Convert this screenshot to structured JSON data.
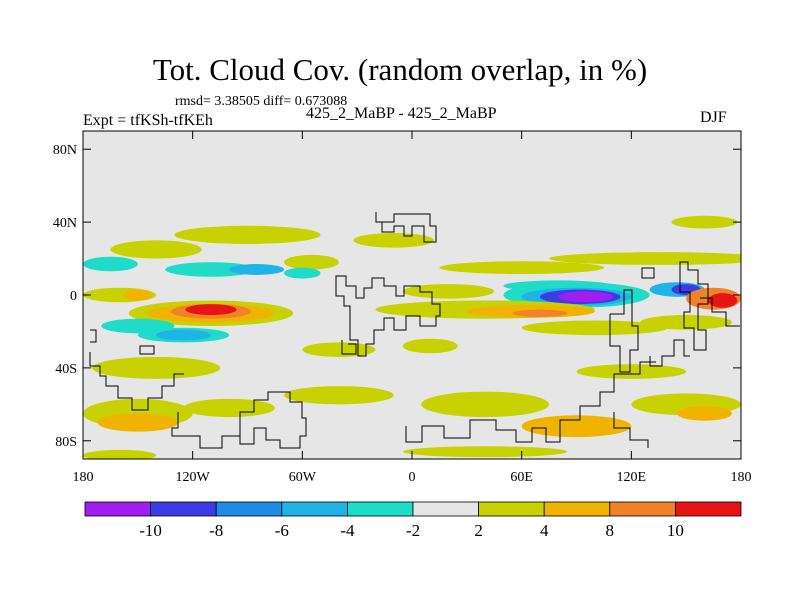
{
  "header": {
    "title": "Tot. Cloud Cov. (random overlap, in %)",
    "stats": "rmsd= 3.38505 diff= 0.673088",
    "experiment": "Expt = tfKSh-tfKEh",
    "comparison": "425_2_MaBP - 425_2_MaBP",
    "season": "DJF"
  },
  "chart_data": {
    "type": "heatmap",
    "title": "Tot. Cloud Cov. (random overlap, in %)",
    "xlabel": "",
    "ylabel": "",
    "xlim": [
      -180,
      180
    ],
    "ylim": [
      -90,
      90
    ],
    "x_ticks": [
      {
        "value": -180,
        "label": "180"
      },
      {
        "value": -120,
        "label": "120W"
      },
      {
        "value": -60,
        "label": "60W"
      },
      {
        "value": 0,
        "label": "0"
      },
      {
        "value": 60,
        "label": "60E"
      },
      {
        "value": 120,
        "label": "120E"
      },
      {
        "value": 180,
        "label": "180"
      }
    ],
    "y_ticks": [
      {
        "value": 80,
        "label": "80N"
      },
      {
        "value": 40,
        "label": "40N"
      },
      {
        "value": 0,
        "label": "0"
      },
      {
        "value": -40,
        "label": "40S"
      },
      {
        "value": -80,
        "label": "80S"
      }
    ],
    "background_color": "#e6e6e6",
    "colorbar": {
      "boundaries": [
        -10,
        -8,
        -6,
        -4,
        -2,
        2,
        4,
        8,
        10
      ],
      "labels": [
        "-10",
        "-8",
        "-6",
        "-4",
        "-2",
        "2",
        "4",
        "8",
        "10"
      ],
      "colors": [
        "#a01ef0",
        "#3c3ce6",
        "#1e8ce6",
        "#1eb4e6",
        "#1edcc8",
        "#e6e6e6",
        "#c8d200",
        "#f0b400",
        "#f08228",
        "#e61414"
      ]
    },
    "anomaly_regions": [
      {
        "lon": 135,
        "lat": 20,
        "rx": 60,
        "ry": 3.5,
        "color": "#c8d200"
      },
      {
        "lon": -140,
        "lat": 25,
        "rx": 25,
        "ry": 5,
        "color": "#c8d200"
      },
      {
        "lon": -90,
        "lat": 33,
        "rx": 40,
        "ry": 5,
        "color": "#c8d200"
      },
      {
        "lon": -55,
        "lat": 18,
        "rx": 15,
        "ry": 4,
        "color": "#c8d200"
      },
      {
        "lon": -10,
        "lat": 30,
        "rx": 22,
        "ry": 4,
        "color": "#c8d200"
      },
      {
        "lon": 60,
        "lat": 15,
        "rx": 45,
        "ry": 3.5,
        "color": "#c8d200"
      },
      {
        "lon": 160,
        "lat": 40,
        "rx": 18,
        "ry": 3.5,
        "color": "#c8d200"
      },
      {
        "lon": -165,
        "lat": 17,
        "rx": 15,
        "ry": 4,
        "color": "#1edcc8"
      },
      {
        "lon": -110,
        "lat": 14,
        "rx": 25,
        "ry": 4,
        "color": "#1edcc8"
      },
      {
        "lon": -85,
        "lat": 14,
        "rx": 15,
        "ry": 3,
        "color": "#1eb4e6"
      },
      {
        "lon": -60,
        "lat": 12,
        "rx": 10,
        "ry": 3,
        "color": "#1edcc8"
      },
      {
        "lon": 80,
        "lat": 5,
        "rx": 30,
        "ry": 3,
        "color": "#1edcc8"
      },
      {
        "lon": -160,
        "lat": 0,
        "rx": 20,
        "ry": 4,
        "color": "#c8d200"
      },
      {
        "lon": -150,
        "lat": 0,
        "rx": 8,
        "ry": 3,
        "color": "#f0b400"
      },
      {
        "lon": 20,
        "lat": 2,
        "rx": 25,
        "ry": 4,
        "color": "#c8d200"
      },
      {
        "lon": 90,
        "lat": 0,
        "rx": 40,
        "ry": 7,
        "color": "#1edcc8"
      },
      {
        "lon": 90,
        "lat": -1,
        "rx": 30,
        "ry": 5,
        "color": "#1eb4e6"
      },
      {
        "lon": 92,
        "lat": -1,
        "rx": 22,
        "ry": 4,
        "color": "#3c3ce6"
      },
      {
        "lon": 95,
        "lat": -1,
        "rx": 15,
        "ry": 3,
        "color": "#a01ef0"
      },
      {
        "lon": 145,
        "lat": 3,
        "rx": 15,
        "ry": 4,
        "color": "#1eb4e6"
      },
      {
        "lon": 150,
        "lat": 3,
        "rx": 8,
        "ry": 3,
        "color": "#3c3ce6"
      },
      {
        "lon": 165,
        "lat": -2,
        "rx": 15,
        "ry": 6,
        "color": "#f08228"
      },
      {
        "lon": 170,
        "lat": -3,
        "rx": 8,
        "ry": 4,
        "color": "#e61414"
      },
      {
        "lon": -110,
        "lat": -10,
        "rx": 45,
        "ry": 7,
        "color": "#c8d200"
      },
      {
        "lon": -110,
        "lat": -10,
        "rx": 35,
        "ry": 5,
        "color": "#f0b400"
      },
      {
        "lon": -110,
        "lat": -9,
        "rx": 22,
        "ry": 4,
        "color": "#f08228"
      },
      {
        "lon": -110,
        "lat": -8,
        "rx": 14,
        "ry": 3,
        "color": "#e61414"
      },
      {
        "lon": 40,
        "lat": -8,
        "rx": 60,
        "ry": 5,
        "color": "#c8d200"
      },
      {
        "lon": 65,
        "lat": -9,
        "rx": 35,
        "ry": 3.5,
        "color": "#f0b400"
      },
      {
        "lon": 70,
        "lat": -10,
        "rx": 15,
        "ry": 2,
        "color": "#f08228"
      },
      {
        "lon": -150,
        "lat": -17,
        "rx": 20,
        "ry": 4,
        "color": "#1edcc8"
      },
      {
        "lon": -125,
        "lat": -22,
        "rx": 25,
        "ry": 4,
        "color": "#1edcc8"
      },
      {
        "lon": -125,
        "lat": -22,
        "rx": 15,
        "ry": 3,
        "color": "#1eb4e6"
      },
      {
        "lon": 100,
        "lat": -18,
        "rx": 40,
        "ry": 4,
        "color": "#c8d200"
      },
      {
        "lon": 150,
        "lat": -15,
        "rx": 25,
        "ry": 4,
        "color": "#c8d200"
      },
      {
        "lon": -140,
        "lat": -40,
        "rx": 35,
        "ry": 6,
        "color": "#c8d200"
      },
      {
        "lon": -40,
        "lat": -30,
        "rx": 20,
        "ry": 4,
        "color": "#c8d200"
      },
      {
        "lon": 10,
        "lat": -28,
        "rx": 15,
        "ry": 4,
        "color": "#c8d200"
      },
      {
        "lon": 120,
        "lat": -42,
        "rx": 30,
        "ry": 4,
        "color": "#c8d200"
      },
      {
        "lon": -150,
        "lat": -65,
        "rx": 30,
        "ry": 8,
        "color": "#c8d200"
      },
      {
        "lon": -150,
        "lat": -70,
        "rx": 22,
        "ry": 5,
        "color": "#f0b400"
      },
      {
        "lon": -100,
        "lat": -62,
        "rx": 25,
        "ry": 5,
        "color": "#c8d200"
      },
      {
        "lon": -40,
        "lat": -55,
        "rx": 30,
        "ry": 5,
        "color": "#c8d200"
      },
      {
        "lon": 40,
        "lat": -60,
        "rx": 35,
        "ry": 7,
        "color": "#c8d200"
      },
      {
        "lon": 90,
        "lat": -72,
        "rx": 30,
        "ry": 6,
        "color": "#f0b400"
      },
      {
        "lon": 150,
        "lat": -60,
        "rx": 30,
        "ry": 6,
        "color": "#c8d200"
      },
      {
        "lon": 160,
        "lat": -65,
        "rx": 15,
        "ry": 4,
        "color": "#f0b400"
      },
      {
        "lon": -160,
        "lat": -88,
        "rx": 20,
        "ry": 3,
        "color": "#c8d200"
      },
      {
        "lon": 40,
        "lat": -86,
        "rx": 45,
        "ry": 3,
        "color": "#c8d200"
      }
    ]
  }
}
